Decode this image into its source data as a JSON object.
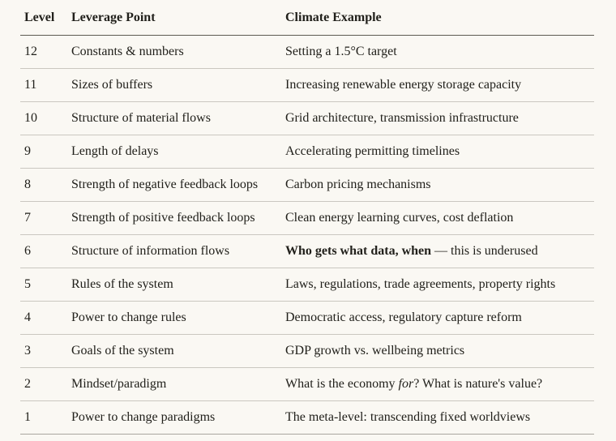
{
  "page": {
    "background": "#faf8f3",
    "text_color": "#21201b",
    "header_rule_color": "#5d5a52",
    "row_rule_color": "#cac7c0",
    "bottom_rule_color": "#a9a69f"
  },
  "table": {
    "columns": [
      "Level",
      "Leverage Point",
      "Climate Example"
    ],
    "rows": [
      {
        "level": "12",
        "leverage": "Constants & numbers",
        "example": "Setting a 1.5°C target"
      },
      {
        "level": "11",
        "leverage": "Sizes of buffers",
        "example": "Increasing renewable energy storage capacity"
      },
      {
        "level": "10",
        "leverage": "Structure of material flows",
        "example": "Grid architecture, transmission infrastructure"
      },
      {
        "level": "9",
        "leverage": "Length of delays",
        "example": "Accelerating permitting timelines"
      },
      {
        "level": "8",
        "leverage": "Strength of negative feedback loops",
        "example": "Carbon pricing mechanisms"
      },
      {
        "level": "7",
        "leverage": "Strength of positive feedback loops",
        "example": "Clean energy learning curves, cost deflation"
      },
      {
        "level": "6",
        "leverage": "Structure of information flows",
        "example_bold": "Who gets what data, when",
        "example_rest": " — this is underused"
      },
      {
        "level": "5",
        "leverage": "Rules of the system",
        "example": "Laws, regulations, trade agreements, property rights"
      },
      {
        "level": "4",
        "leverage": "Power to change rules",
        "example": "Democratic access, regulatory capture reform"
      },
      {
        "level": "3",
        "leverage": "Goals of the system",
        "example": "GDP growth vs. wellbeing metrics"
      },
      {
        "level": "2",
        "leverage": "Mindset/paradigm",
        "example_pre": "What is the economy ",
        "example_italic": "for",
        "example_post": "? What is nature's value?"
      },
      {
        "level": "1",
        "leverage": "Power to change paradigms",
        "example": "The meta-level: transcending fixed worldviews"
      }
    ]
  }
}
